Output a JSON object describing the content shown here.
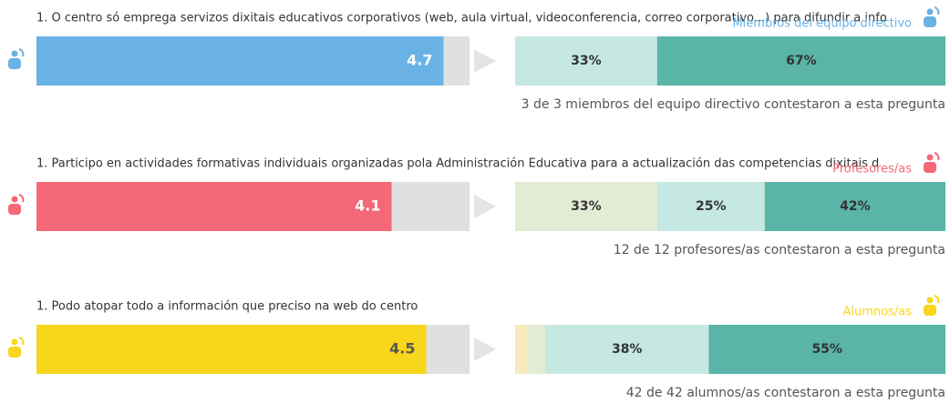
{
  "xlim": [
    0,
    5
  ],
  "rows": [
    {
      "question": "1. O centro só emprega servizos dixitais educativos corporativos (web, aula virtual, videoconferencia, correo corporativo...) para difundir a info",
      "group": "Miembros del equipo directivo",
      "color": "#6ab2e4",
      "score": 4.7,
      "score_text_color": "#ffffff",
      "distribution": {
        "values": [
          33,
          67
        ],
        "value_labels": [
          "33%",
          "67%"
        ],
        "colors": [
          "#c5e8e2",
          "#5ab4a8"
        ]
      },
      "respondents": "3 de 3 miembros del equipo directivo contestaron a esta pregunta"
    },
    {
      "question": "1. Participo en actividades formativas individuais organizadas pola Administración Educativa para a actualización das competencias dixitais d",
      "group": "Profesores/as",
      "color": "#f56878",
      "score": 4.1,
      "score_text_color": "#ffffff",
      "distribution": {
        "values": [
          33,
          25,
          42
        ],
        "value_labels": [
          "33%",
          "25%",
          "42%"
        ],
        "colors": [
          "#e3ebd4",
          "#c5e8e2",
          "#5ab4a8"
        ]
      },
      "respondents": "12 de 12 profesores/as contestaron a esta pregunta"
    },
    {
      "question": "1. Podo atopar todo a información que preciso na web do centro",
      "group": "Alumnos/as",
      "color": "#f8d61c",
      "score": 4.5,
      "score_text_color": "#555555",
      "distribution": {
        "values": [
          3,
          4,
          38,
          55
        ],
        "value_labels": [
          null,
          null,
          "38%",
          "55%"
        ],
        "colors": [
          "#f7e9c0",
          "#e3ebd4",
          "#c5e8e2",
          "#5ab4a8"
        ]
      },
      "respondents": "42 de 42 alumnos/as contestaron a esta pregunta"
    }
  ]
}
